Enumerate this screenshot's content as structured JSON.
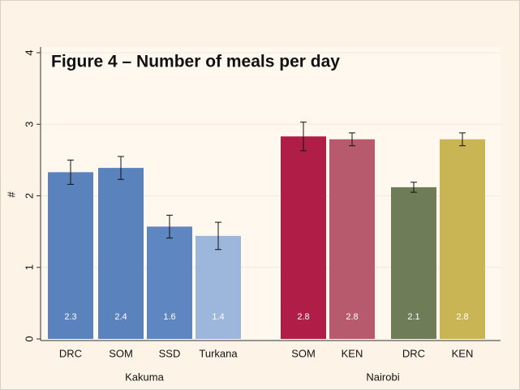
{
  "chart_data": {
    "type": "bar",
    "title": "Figure 4 – Number of meals per day",
    "ylabel": "#",
    "ylim": [
      0,
      4
    ],
    "yticks": [
      0,
      1,
      2,
      3,
      4
    ],
    "grid": true,
    "groups": [
      {
        "name": "Kakuma",
        "categories": [
          "DRC",
          "SOM",
          "SSD",
          "Turkana"
        ],
        "values": [
          2.33,
          2.39,
          1.57,
          1.44
        ],
        "value_labels": [
          "2.3",
          "2.4",
          "1.6",
          "1.4"
        ],
        "errors": [
          0.17,
          0.16,
          0.16,
          0.19
        ],
        "colors": [
          "#5a82bd",
          "#5a82bd",
          "#5e86c0",
          "#9db6db"
        ]
      },
      {
        "name": "Nairobi",
        "categories": [
          "SOM",
          "KEN",
          "DRC",
          "KEN"
        ],
        "values": [
          2.83,
          2.79,
          2.12,
          2.79
        ],
        "value_labels": [
          "2.8",
          "2.8",
          "2.1",
          "2.8"
        ],
        "errors": [
          0.2,
          0.09,
          0.07,
          0.09
        ],
        "colors": [
          "#b01e47",
          "#b85a6e",
          "#6e7c57",
          "#c9b553"
        ]
      }
    ]
  }
}
